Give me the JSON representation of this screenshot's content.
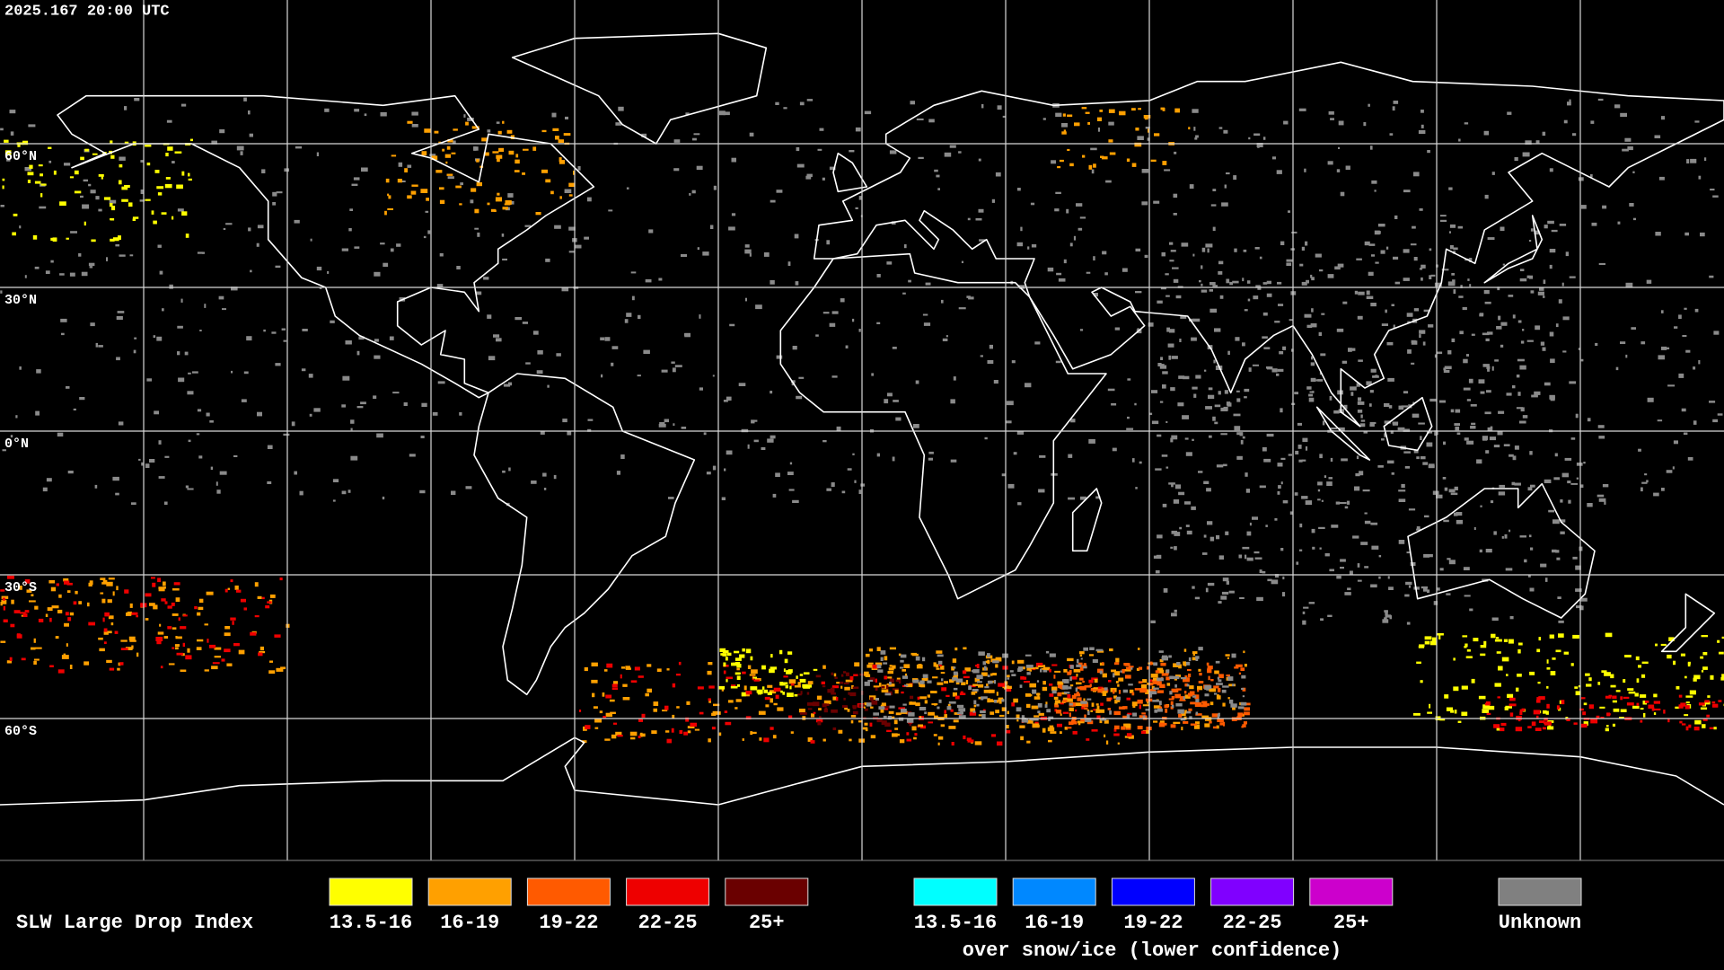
{
  "timestamp": "2025.167 20:00 UTC",
  "latitude_labels": [
    "60°N",
    "30°N",
    "0°N",
    "30°S",
    "60°S"
  ],
  "legend": {
    "title": "SLW Large Drop Index",
    "liquid": [
      {
        "label": "13.5-16",
        "color": "#ffff00"
      },
      {
        "label": "16-19",
        "color": "#ffa000"
      },
      {
        "label": "19-22",
        "color": "#ff5a00"
      },
      {
        "label": "22-25",
        "color": "#ee0000"
      },
      {
        "label": "25+",
        "color": "#6a0000"
      }
    ],
    "snow_ice": [
      {
        "label": "13.5-16",
        "color": "#00ffff"
      },
      {
        "label": "16-19",
        "color": "#0088ff"
      },
      {
        "label": "19-22",
        "color": "#0000ff"
      },
      {
        "label": "22-25",
        "color": "#8000ff"
      },
      {
        "label": "25+",
        "color": "#cc00cc"
      }
    ],
    "snow_ice_caption": "over snow/ice (lower confidence)",
    "unknown": {
      "label": "Unknown",
      "color": "#808080"
    }
  }
}
